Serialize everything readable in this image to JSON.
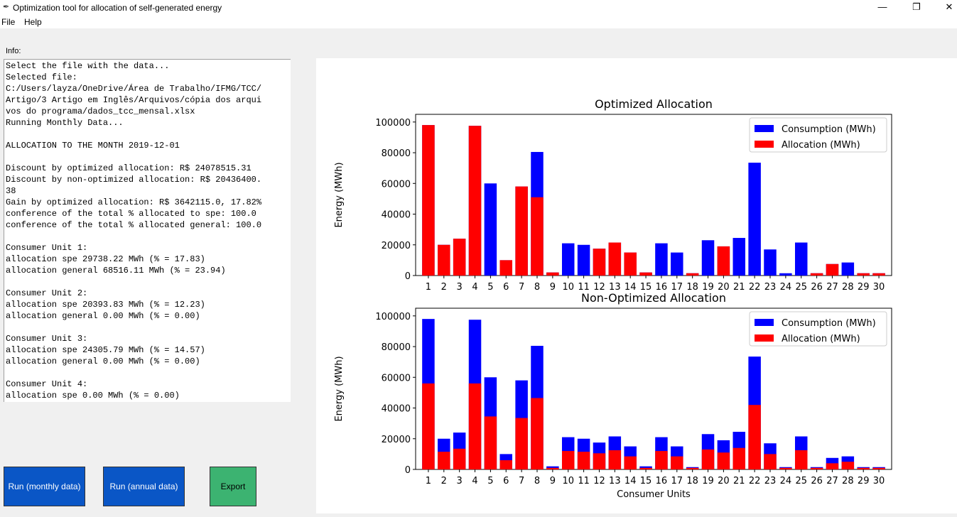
{
  "window": {
    "title": "Optimization tool for allocation of self-generated energy",
    "minimize": "—",
    "maximize": "❐",
    "close": "✕"
  },
  "menu": [
    "File",
    "Help"
  ],
  "info": {
    "label": "Info:",
    "text": "Select the file with the data...\nSelected file:\nC:/Users/layza/OneDrive/Área de Trabalho/IFMG/TCC/\nArtigo/3 Artigo em Inglês/Arquivos/cópia dos arqui\nvos do programa/dados_tcc_mensal.xlsx\nRunning Monthly Data...\n\nALLOCATION TO THE MONTH 2019-12-01\n\nDiscount by optimized allocation: R$ 24078515.31\nDiscount by non-optimized allocation: R$ 20436400.\n38\nGain by optimized allocation: R$ 3642115.0, 17.82%\nconference of the total % allocated to spe: 100.0\nconference of the total % allocated general: 100.0\n\nConsumer Unit 1:\nallocation spe 29738.22 MWh (% = 17.83)\nallocation general 68516.11 MWh (% = 23.94)\n\nConsumer Unit 2:\nallocation spe 20393.83 MWh (% = 12.23)\nallocation general 0.00 MWh (% = 0.00)\n\nConsumer Unit 3:\nallocation spe 24305.79 MWh (% = 14.57)\nallocation general 0.00 MWh (% = 0.00)\n\nConsumer Unit 4:\nallocation spe 0.00 MWh (% = 0.00)"
  },
  "buttons": {
    "run_monthly": "Run (monthly data)",
    "run_annual": "Run (annual data)",
    "export": "Export"
  },
  "colors": {
    "consumption": "#0000ff",
    "allocation": "#ff0000",
    "run_button": "#0a56c6",
    "export_button": "#3cb371"
  },
  "chart_data": [
    {
      "type": "bar",
      "title": "Optimized Allocation",
      "xlabel": "",
      "ylabel": "Energy (MWh)",
      "ylim": [
        0,
        105000
      ],
      "yticks": [
        0,
        20000,
        40000,
        60000,
        80000,
        100000
      ],
      "categories": [
        "1",
        "2",
        "3",
        "4",
        "5",
        "6",
        "7",
        "8",
        "9",
        "10",
        "11",
        "12",
        "13",
        "14",
        "15",
        "16",
        "17",
        "18",
        "19",
        "20",
        "21",
        "22",
        "23",
        "24",
        "25",
        "26",
        "27",
        "28",
        "29",
        "30"
      ],
      "legend_position": "top-right",
      "series": [
        {
          "name": "Consumption (MWh)",
          "color": "#0000ff",
          "values": [
            98000,
            20000,
            24000,
            97500,
            60000,
            10000,
            58000,
            80500,
            2000,
            21000,
            20000,
            17500,
            21500,
            15000,
            2000,
            21000,
            15000,
            1500,
            23000,
            19000,
            24500,
            73500,
            17000,
            1500,
            21500,
            1500,
            7500,
            8500,
            1500,
            1500
          ]
        },
        {
          "name": "Allocation (MWh)",
          "color": "#ff0000",
          "values": [
            98000,
            20000,
            24000,
            97500,
            0,
            10000,
            58000,
            51000,
            2000,
            0,
            0,
            17500,
            21500,
            15000,
            2000,
            0,
            0,
            1500,
            0,
            19000,
            0,
            0,
            0,
            0,
            0,
            1500,
            7500,
            0,
            1500,
            1500
          ]
        }
      ]
    },
    {
      "type": "bar",
      "title": "Non-Optimized Allocation",
      "xlabel": "Consumer Units",
      "ylabel": "Energy (MWh)",
      "ylim": [
        0,
        105000
      ],
      "yticks": [
        0,
        20000,
        40000,
        60000,
        80000,
        100000
      ],
      "categories": [
        "1",
        "2",
        "3",
        "4",
        "5",
        "6",
        "7",
        "8",
        "9",
        "10",
        "11",
        "12",
        "13",
        "14",
        "15",
        "16",
        "17",
        "18",
        "19",
        "20",
        "21",
        "22",
        "23",
        "24",
        "25",
        "26",
        "27",
        "28",
        "29",
        "30"
      ],
      "legend_position": "top-right",
      "series": [
        {
          "name": "Consumption (MWh)",
          "color": "#0000ff",
          "values": [
            98000,
            20000,
            24000,
            97500,
            60000,
            10000,
            58000,
            80500,
            2000,
            21000,
            20000,
            17500,
            21500,
            15000,
            2000,
            21000,
            15000,
            1500,
            23000,
            19000,
            24500,
            73500,
            17000,
            1500,
            21500,
            1500,
            7500,
            8500,
            1500,
            1500
          ]
        },
        {
          "name": "Allocation (MWh)",
          "color": "#ff0000",
          "values": [
            56000,
            11500,
            13500,
            56000,
            34500,
            6000,
            33500,
            46500,
            1000,
            12000,
            11500,
            10500,
            12500,
            8500,
            1000,
            12000,
            8500,
            1000,
            13000,
            11000,
            14000,
            42000,
            10000,
            1000,
            12500,
            1000,
            4000,
            5000,
            1000,
            1000
          ]
        }
      ]
    }
  ]
}
